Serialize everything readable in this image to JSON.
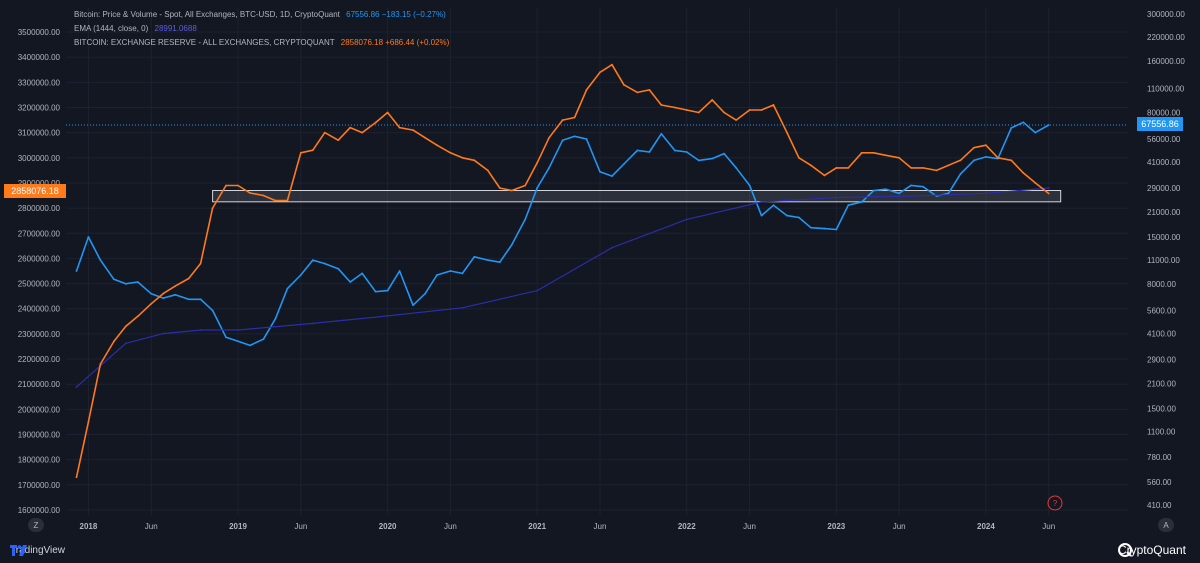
{
  "legend": {
    "line1_label": "Bitcoin: Price & Volume - Spot, All Exchanges, BTC-USD, 1D, CryptoQuant",
    "line1_value": "67556.86  −183.15 (−0.27%)",
    "line2_label": "EMA (1444, close, 0)",
    "line2_value": "28991.0688",
    "line3_label": "BITCOIN: EXCHANGE RESERVE - ALL EXCHANGES, CRYPTOQUANT",
    "line3_value": "2858076.18  +686.44 (+0.02%)"
  },
  "badges": {
    "left": "2858076.18",
    "right": "67556.86"
  },
  "footer": {
    "tradingview": "TradingView",
    "cryptoquant": "CryptoQuant",
    "left_scale_btn": "Z",
    "right_scale_btn": "A"
  },
  "colors": {
    "background": "#131722",
    "price": "#2196f3",
    "ema": "#2a2ea8",
    "reserve": "#ff7a1a",
    "grid": "#1e2230",
    "text": "#b2b5be"
  },
  "chart_data": {
    "type": "line",
    "x_ticks": [
      "2018",
      "Jun",
      "2019",
      "Jun",
      "2020",
      "Jun",
      "2021",
      "Jun",
      "2022",
      "Jun",
      "2023",
      "Jun",
      "2024",
      "Jun"
    ],
    "left_axis": {
      "label": "",
      "ticks": [
        "3500000.00",
        "3400000.00",
        "3300000.00",
        "3200000.00",
        "3100000.00",
        "3000000.00",
        "2900000.00",
        "2800000.00",
        "2700000.00",
        "2600000.00",
        "2500000.00",
        "2400000.00",
        "2300000.00",
        "2200000.00",
        "2100000.00",
        "2000000.00",
        "1900000.00",
        "1800000.00",
        "1700000.00",
        "1600000.00"
      ],
      "range": [
        1600000,
        3500000
      ]
    },
    "right_axis": {
      "label": "",
      "scale": "log",
      "ticks": [
        "300000.00",
        "220000.00",
        "160000.00",
        "110000.00",
        "80000.00",
        "56000.00",
        "41000.00",
        "29000.00",
        "21000.00",
        "15000.00",
        "11000.00",
        "8000.00",
        "5600.00",
        "4100.00",
        "2900.00",
        "2100.00",
        "1500.00",
        "1100.00",
        "780.00",
        "560.00",
        "410.00"
      ]
    },
    "series": [
      {
        "name": "Bitcoin: Price & Volume - Spot, All Exchanges, BTC-USD, 1D, CryptoQuant",
        "axis": "right",
        "x": [
          2017.92,
          2018.0,
          2018.08,
          2018.17,
          2018.25,
          2018.33,
          2018.42,
          2018.5,
          2018.58,
          2018.67,
          2018.75,
          2018.83,
          2018.92,
          2019.0,
          2019.08,
          2019.17,
          2019.25,
          2019.33,
          2019.42,
          2019.5,
          2019.58,
          2019.67,
          2019.75,
          2019.83,
          2019.92,
          2020.0,
          2020.08,
          2020.17,
          2020.25,
          2020.33,
          2020.42,
          2020.5,
          2020.58,
          2020.67,
          2020.75,
          2020.83,
          2020.92,
          2021.0,
          2021.08,
          2021.17,
          2021.25,
          2021.33,
          2021.42,
          2021.5,
          2021.58,
          2021.67,
          2021.75,
          2021.83,
          2021.92,
          2022.0,
          2022.08,
          2022.17,
          2022.25,
          2022.33,
          2022.42,
          2022.5,
          2022.58,
          2022.67,
          2022.75,
          2022.83,
          2022.92,
          2023.0,
          2023.08,
          2023.17,
          2023.25,
          2023.33,
          2023.42,
          2023.5,
          2023.58,
          2023.67,
          2023.75,
          2023.83,
          2023.92,
          2024.0,
          2024.08,
          2024.17,
          2024.25,
          2024.33,
          2024.42
        ],
        "values": [
          9500,
          15000,
          11000,
          8500,
          8000,
          8200,
          7000,
          6600,
          6900,
          6500,
          6500,
          5600,
          3900,
          3700,
          3500,
          3800,
          5000,
          7500,
          9000,
          11000,
          10500,
          9800,
          8200,
          9200,
          7200,
          7300,
          9500,
          6000,
          7000,
          9000,
          9500,
          9200,
          11500,
          11000,
          10700,
          13500,
          19000,
          29000,
          38000,
          55000,
          58000,
          56000,
          36000,
          34000,
          40000,
          48000,
          47000,
          60000,
          48000,
          47000,
          42000,
          43000,
          46000,
          38000,
          30000,
          20000,
          23000,
          20000,
          19500,
          17000,
          16800,
          16600,
          23000,
          24000,
          28000,
          28500,
          27000,
          30000,
          29500,
          26000,
          27000,
          35000,
          42000,
          44000,
          43000,
          65000,
          70000,
          61000,
          67556.86
        ]
      },
      {
        "name": "EMA (1444, close, 0)",
        "axis": "right",
        "x": [
          2017.92,
          2018.25,
          2018.5,
          2018.75,
          2019.0,
          2019.5,
          2020.0,
          2020.5,
          2021.0,
          2021.5,
          2022.0,
          2022.5,
          2023.0,
          2023.5,
          2024.0,
          2024.42
        ],
        "values": [
          2000,
          3600,
          4100,
          4300,
          4300,
          4700,
          5200,
          5800,
          7300,
          13000,
          19000,
          24000,
          25500,
          26000,
          27000,
          28991.0688
        ]
      },
      {
        "name": "BITCOIN: EXCHANGE RESERVE - ALL EXCHANGES, CRYPTOQUANT",
        "axis": "left",
        "x": [
          2017.92,
          2018.0,
          2018.08,
          2018.17,
          2018.25,
          2018.33,
          2018.42,
          2018.5,
          2018.58,
          2018.67,
          2018.75,
          2018.83,
          2018.92,
          2019.0,
          2019.08,
          2019.17,
          2019.25,
          2019.33,
          2019.42,
          2019.5,
          2019.58,
          2019.67,
          2019.75,
          2019.83,
          2019.92,
          2020.0,
          2020.08,
          2020.17,
          2020.25,
          2020.33,
          2020.42,
          2020.5,
          2020.58,
          2020.67,
          2020.75,
          2020.83,
          2020.92,
          2021.0,
          2021.08,
          2021.17,
          2021.25,
          2021.33,
          2021.42,
          2021.5,
          2021.58,
          2021.67,
          2021.75,
          2021.83,
          2021.92,
          2022.0,
          2022.08,
          2022.17,
          2022.25,
          2022.33,
          2022.42,
          2022.5,
          2022.58,
          2022.67,
          2022.75,
          2022.83,
          2022.92,
          2023.0,
          2023.08,
          2023.17,
          2023.25,
          2023.33,
          2023.42,
          2023.5,
          2023.58,
          2023.67,
          2023.75,
          2023.83,
          2023.92,
          2024.0,
          2024.08,
          2024.17,
          2024.25,
          2024.33,
          2024.42
        ],
        "values": [
          1730000,
          1950000,
          2180000,
          2270000,
          2330000,
          2370000,
          2420000,
          2460000,
          2490000,
          2520000,
          2580000,
          2800000,
          2890000,
          2890000,
          2860000,
          2850000,
          2830000,
          2830000,
          3020000,
          3030000,
          3100000,
          3070000,
          3120000,
          3100000,
          3140000,
          3180000,
          3120000,
          3110000,
          3080000,
          3050000,
          3020000,
          3000000,
          2990000,
          2950000,
          2880000,
          2870000,
          2890000,
          2980000,
          3080000,
          3150000,
          3160000,
          3270000,
          3340000,
          3370000,
          3290000,
          3260000,
          3270000,
          3210000,
          3200000,
          3190000,
          3180000,
          3230000,
          3180000,
          3150000,
          3190000,
          3190000,
          3210000,
          3100000,
          3000000,
          2970000,
          2930000,
          2960000,
          2960000,
          3020000,
          3020000,
          3010000,
          3000000,
          2960000,
          2960000,
          2950000,
          2970000,
          2990000,
          3040000,
          3050000,
          3000000,
          2990000,
          2940000,
          2900000,
          2858076.18
        ]
      }
    ],
    "annotations": [
      {
        "type": "range-box",
        "left_axis_range": [
          2825000,
          2870000
        ],
        "x_range": [
          2018.83,
          2024.5
        ]
      },
      {
        "type": "horizontal-dotted-line",
        "axis": "right",
        "value": 67556.86
      }
    ],
    "x_range": [
      2017.85,
      2024.95
    ]
  }
}
